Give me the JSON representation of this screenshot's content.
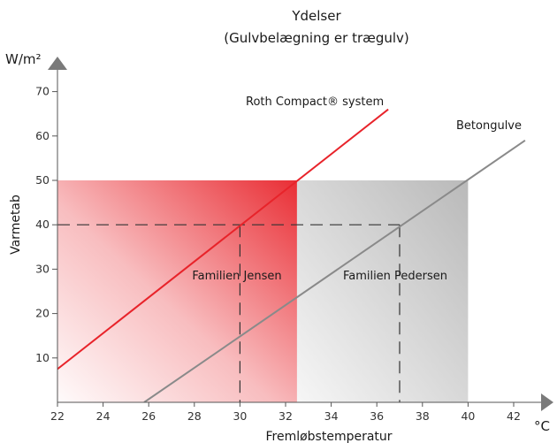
{
  "chart_data": {
    "type": "line",
    "title": "Ydelser",
    "subtitle": "(Gulvbelægning er trægulv)",
    "xlabel": "Fremløbstemperatur",
    "xunit": "°C",
    "ylabel": "Varmetab",
    "yunit": "W/m²",
    "xlim": [
      22,
      44
    ],
    "ylim": [
      0,
      75
    ],
    "xticks": [
      22,
      24,
      26,
      28,
      30,
      32,
      34,
      36,
      38,
      40,
      42
    ],
    "yticks": [
      10,
      20,
      30,
      40,
      50,
      60,
      70
    ],
    "grid": false,
    "series": [
      {
        "name": "Roth Compact® system",
        "color": "#e8232a",
        "points": [
          [
            22,
            7.5
          ],
          [
            36.5,
            66
          ]
        ]
      },
      {
        "name": "Betongulve",
        "color": "#8a8a8a",
        "points": [
          [
            25.8,
            0
          ],
          [
            42.5,
            59
          ]
        ]
      }
    ],
    "regions": [
      {
        "label": "Familien Jensen",
        "x": [
          22,
          32.5
        ],
        "y": [
          0,
          50
        ],
        "color": "#e8232a"
      },
      {
        "label": "Familien Pedersen",
        "x": [
          32.5,
          40
        ],
        "y": [
          0,
          50
        ],
        "color": "#a8a8a8"
      }
    ],
    "reference_lines": [
      {
        "x": 30,
        "y": 40
      },
      {
        "x": 37,
        "y": 40
      }
    ]
  }
}
